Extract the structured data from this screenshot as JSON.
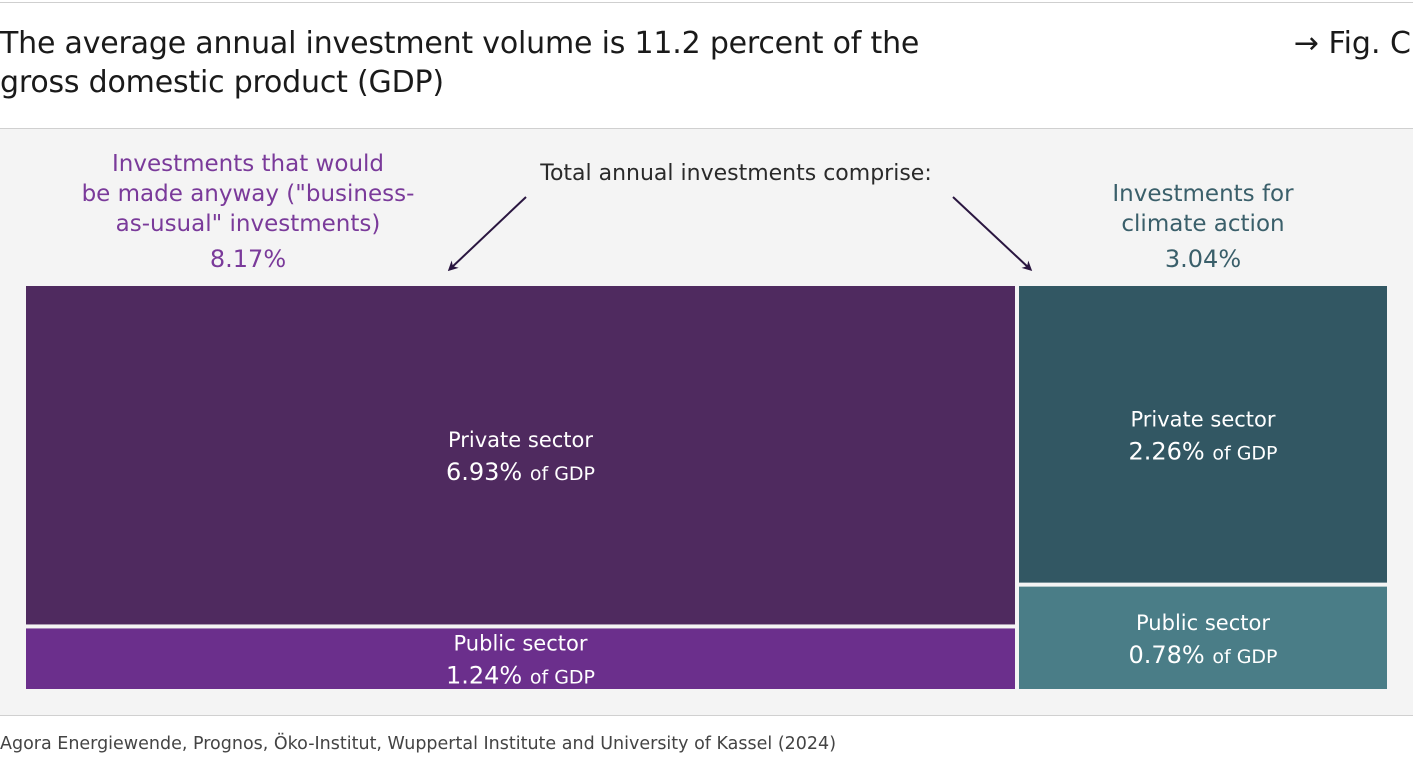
{
  "header": {
    "title_line1": "The average annual investment volume is 11.2 percent of the",
    "title_line2": "gross domestic product (GDP)",
    "figure_ref": "→ Fig. C"
  },
  "colors": {
    "bau_private": "#4f2a5f",
    "bau_public": "#6b2f8c",
    "bau_label": "#7a3a9a",
    "climate_private": "#325763",
    "climate_public": "#4a7d87",
    "climate_label": "#3a5f6a",
    "arrow": "#2a1640",
    "panel_bg": "#f4f4f4"
  },
  "chart_data": {
    "type": "treemap",
    "title": "The average annual investment volume is 11.2 percent of the gross domestic product (GDP)",
    "units": "% of GDP",
    "intro_label": "Total annual investments comprise:",
    "groups": [
      {
        "name_lines": [
          "Investments that would",
          "be made anyway (\"business-",
          "as-usual\" investments)"
        ],
        "total": 8.17,
        "total_label": "8.17%",
        "children": [
          {
            "name": "Private sector",
            "value": 6.93,
            "value_label": "6.93%",
            "unit_label": "of GDP"
          },
          {
            "name": "Public sector",
            "value": 1.24,
            "value_label": "1.24%",
            "unit_label": "of GDP"
          }
        ]
      },
      {
        "name_lines": [
          "Investments for",
          "climate action"
        ],
        "total": 3.04,
        "total_label": "3.04%",
        "children": [
          {
            "name": "Private sector",
            "value": 2.26,
            "value_label": "2.26%",
            "unit_label": "of GDP"
          },
          {
            "name": "Public sector",
            "value": 0.78,
            "value_label": "0.78%",
            "unit_label": "of GDP"
          }
        ]
      }
    ]
  },
  "footer": {
    "source": "Agora Energiewende, Prognos, Öko-Institut, Wuppertal Institute and University of Kassel (2024)"
  }
}
